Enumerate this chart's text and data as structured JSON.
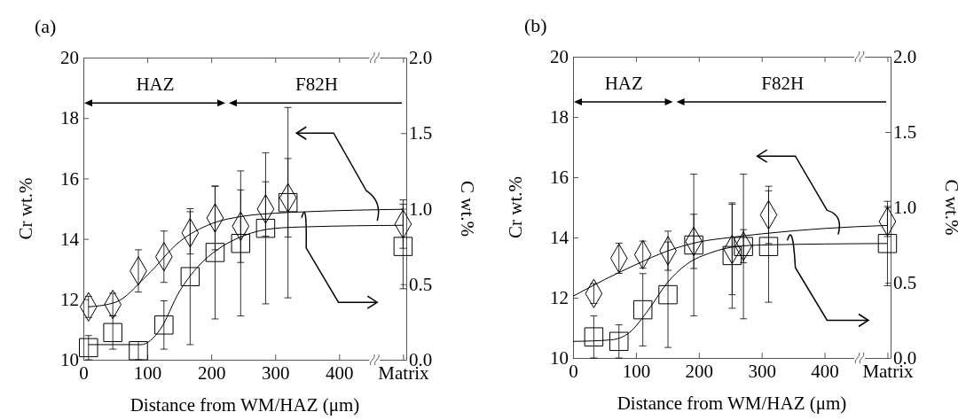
{
  "chart_data": [
    {
      "type": "scatter",
      "title": "(a)",
      "xlabel": "Distance from WM/HAZ (μm)",
      "ylabel": "Cr wt.%",
      "y2label": "C wt.%",
      "x": [
        8,
        46,
        86,
        126,
        167,
        206,
        246,
        285,
        320,
        500
      ],
      "xlim": [
        0,
        505
      ],
      "xticks": [
        0,
        100,
        200,
        300,
        400,
        {
          "value": 500,
          "label": "Matrix"
        }
      ],
      "ylim": [
        10,
        20
      ],
      "yticks": [
        10,
        12,
        14,
        16,
        18,
        20
      ],
      "y2lim": [
        0,
        2
      ],
      "y2ticks": [
        {
          "value": 0,
          "label": "0.0"
        },
        {
          "value": 0.5,
          "label": "0.5"
        },
        {
          "value": 1,
          "label": "1.0"
        },
        {
          "value": 1.5,
          "label": "1.5"
        },
        {
          "value": 2,
          "label": "2.0"
        }
      ],
      "grid": false,
      "annotations": [
        "HAZ",
        "F82H"
      ],
      "series": [
        {
          "type": "scatter",
          "marker": "diamond",
          "color": "#000000",
          "values": [
            11.75,
            11.83,
            12.94,
            13.41,
            14.2,
            14.69,
            14.42,
            14.99,
            15.36,
            14.49
          ],
          "errors": [
            0.35,
            0.37,
            0.7,
            0.85,
            0.7,
            1.05,
            1.2,
            0.9,
            1.3,
            0.8
          ]
        },
        {
          "type": "scatter",
          "marker": "square",
          "axis": "y2",
          "color": "#000000",
          "values": [
            0.08,
            0.18,
            0.06,
            0.23,
            0.55,
            0.71,
            0.77,
            0.87,
            1.04,
            0.75
          ],
          "errors": [
            0.08,
            0.11,
            0.06,
            0.16,
            0.45,
            0.44,
            0.48,
            0.5,
            0.63,
            0.28
          ]
        },
        {
          "type": "line",
          "marker": "none",
          "color": "#000000",
          "x": [
            8,
            50,
            100,
            150,
            200,
            250,
            300,
            350,
            500
          ],
          "values": [
            11.75,
            11.9,
            12.8,
            13.9,
            14.5,
            14.75,
            14.85,
            14.9,
            14.98
          ]
        },
        {
          "type": "line",
          "marker": "none",
          "axis": "y2",
          "color": "#000000",
          "x": [
            8,
            90,
            120,
            150,
            180,
            210,
            250,
            300,
            350,
            500
          ],
          "values": [
            0.1,
            0.1,
            0.2,
            0.45,
            0.62,
            0.73,
            0.82,
            0.87,
            0.88,
            0.89
          ]
        }
      ]
    },
    {
      "type": "scatter",
      "title": "(b)",
      "xlabel": "Distance from WM/HAZ (μm)",
      "ylabel": "Cr wt.%",
      "y2label": "C wt.%",
      "x": [
        33,
        73,
        111,
        151,
        192,
        253,
        271,
        311,
        500
      ],
      "xlim": [
        0,
        505
      ],
      "xticks": [
        0,
        100,
        200,
        300,
        400,
        {
          "value": 500,
          "label": "Matrix"
        }
      ],
      "ylim": [
        10,
        20
      ],
      "yticks": [
        10,
        12,
        14,
        16,
        18,
        20
      ],
      "y2lim": [
        0,
        2
      ],
      "y2ticks": [
        {
          "value": 0,
          "label": "0.0"
        },
        {
          "value": 0.5,
          "label": "0.5"
        },
        {
          "value": 1,
          "label": "1.0"
        },
        {
          "value": 1.5,
          "label": "1.5"
        },
        {
          "value": 2,
          "label": "2.0"
        }
      ],
      "grid": false,
      "annotations": [
        "HAZ",
        "F82H"
      ],
      "series": [
        {
          "type": "scatter",
          "marker": "diamond",
          "color": "#000000",
          "values": [
            12.14,
            13.31,
            13.43,
            13.56,
            13.87,
            13.6,
            13.71,
            14.75,
            14.53
          ],
          "errors": [
            0.33,
            0.5,
            0.45,
            0.65,
            0.9,
            1.5,
            0.55,
            0.95,
            0.5
          ]
        },
        {
          "type": "scatter",
          "marker": "square",
          "axis": "y2",
          "color": "#000000",
          "values": [
            0.14,
            0.11,
            0.32,
            0.42,
            0.75,
            0.68,
            0.74,
            0.74,
            0.76
          ],
          "errors": [
            0.14,
            0.11,
            0.24,
            0.35,
            0.47,
            0.35,
            0.48,
            0.37,
            0.28
          ]
        },
        {
          "type": "line",
          "marker": "none",
          "color": "#000000",
          "x": [
            0,
            50,
            100,
            150,
            200,
            250,
            300,
            400,
            500
          ],
          "values": [
            12.05,
            12.6,
            13.1,
            13.55,
            13.85,
            14.0,
            14.12,
            14.3,
            14.4
          ]
        },
        {
          "type": "line",
          "marker": "none",
          "axis": "y2",
          "color": "#000000",
          "x": [
            0,
            60,
            90,
            120,
            150,
            180,
            220,
            260,
            300,
            500
          ],
          "values": [
            0.11,
            0.12,
            0.17,
            0.32,
            0.5,
            0.62,
            0.7,
            0.74,
            0.75,
            0.76
          ]
        }
      ]
    }
  ]
}
